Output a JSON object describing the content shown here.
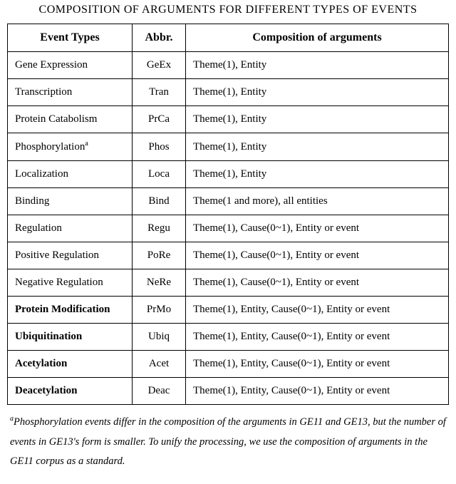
{
  "title": "COMPOSITION OF ARGUMENTS FOR DIFFERENT TYPES OF EVENTS",
  "headers": {
    "event": "Event Types",
    "abbr": "Abbr.",
    "comp": "Composition of arguments"
  },
  "rows": [
    {
      "event": "Gene Expression",
      "abbr": "GeEx",
      "comp": "Theme(1), Entity",
      "bold": false,
      "sup": ""
    },
    {
      "event": "Transcription",
      "abbr": "Tran",
      "comp": "Theme(1), Entity",
      "bold": false,
      "sup": ""
    },
    {
      "event": "Protein Catabolism",
      "abbr": "PrCa",
      "comp": "Theme(1), Entity",
      "bold": false,
      "sup": ""
    },
    {
      "event": "Phosphorylation",
      "abbr": "Phos",
      "comp": "Theme(1), Entity",
      "bold": false,
      "sup": "a"
    },
    {
      "event": "Localization",
      "abbr": "Loca",
      "comp": "Theme(1), Entity",
      "bold": false,
      "sup": ""
    },
    {
      "event": "Binding",
      "abbr": "Bind",
      "comp": "Theme(1 and more), all entities",
      "bold": false,
      "sup": ""
    },
    {
      "event": "Regulation",
      "abbr": "Regu",
      "comp": "Theme(1), Cause(0~1), Entity or event",
      "bold": false,
      "sup": ""
    },
    {
      "event": "Positive Regulation",
      "abbr": "PoRe",
      "comp": "Theme(1), Cause(0~1), Entity or event",
      "bold": false,
      "sup": ""
    },
    {
      "event": "Negative Regulation",
      "abbr": "NeRe",
      "comp": "Theme(1), Cause(0~1), Entity or event",
      "bold": false,
      "sup": ""
    },
    {
      "event": "Protein Modification",
      "abbr": "PrMo",
      "comp": "Theme(1), Entity, Cause(0~1), Entity or event",
      "bold": true,
      "sup": ""
    },
    {
      "event": "Ubiquitination",
      "abbr": "Ubiq",
      "comp": "Theme(1), Entity, Cause(0~1), Entity or event",
      "bold": true,
      "sup": ""
    },
    {
      "event": "Acetylation",
      "abbr": "Acet",
      "comp": "Theme(1), Entity, Cause(0~1), Entity or event",
      "bold": true,
      "sup": ""
    },
    {
      "event": "Deacetylation",
      "abbr": "Deac",
      "comp": "Theme(1), Entity, Cause(0~1), Entity or event",
      "bold": true,
      "sup": ""
    }
  ],
  "footnote": {
    "sup": "a",
    "text": "Phosphorylation events differ in the composition of the arguments in GE11 and GE13, but the number of events in GE13's form is smaller. To unify the processing, we use the composition of arguments in the GE11 corpus as a standard."
  }
}
